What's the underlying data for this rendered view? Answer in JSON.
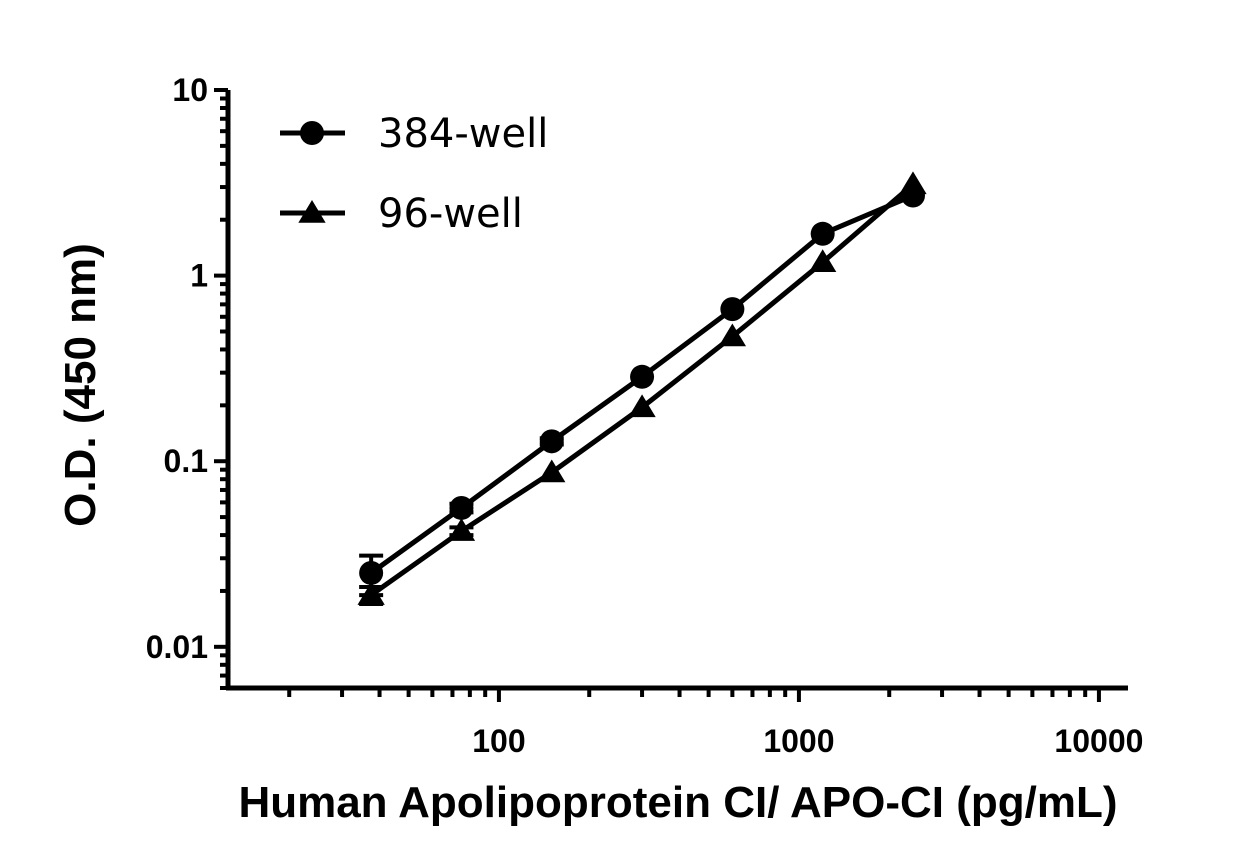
{
  "chart_data": {
    "type": "line",
    "xlabel": "Human Apolipoprotein CI/ APO-CI (pg/mL)",
    "ylabel": "O.D. (450 nm)",
    "x_scale": "log",
    "y_scale": "log",
    "xlim": [
      12.5,
      12500
    ],
    "ylim": [
      0.006,
      10
    ],
    "x_ticks": [
      100,
      1000,
      10000
    ],
    "x_tick_labels": [
      "100",
      "1000",
      "10000"
    ],
    "y_ticks": [
      0.01,
      0.1,
      1,
      10
    ],
    "y_tick_labels": [
      "0.01",
      "0.1",
      "1",
      "10"
    ],
    "grid": false,
    "legend_position": "top-left",
    "series": [
      {
        "name": "384-well",
        "marker": "circle",
        "color": "#000000",
        "x": [
          37.5,
          75,
          150,
          300,
          600,
          1200,
          2400
        ],
        "y": [
          0.025,
          0.056,
          0.128,
          0.285,
          0.66,
          1.68,
          2.7
        ],
        "error": [
          0.006,
          0.003,
          0.005,
          0.01,
          0.02,
          0.05,
          0.1
        ]
      },
      {
        "name": "96-well",
        "marker": "triangle",
        "color": "#000000",
        "x": [
          37.5,
          75,
          150,
          300,
          600,
          1200,
          2400
        ],
        "y": [
          0.019,
          0.042,
          0.087,
          0.195,
          0.47,
          1.18,
          3.1
        ],
        "error": [
          0.002,
          0.002,
          0.003,
          0.006,
          0.015,
          0.04,
          0.1
        ]
      }
    ]
  }
}
